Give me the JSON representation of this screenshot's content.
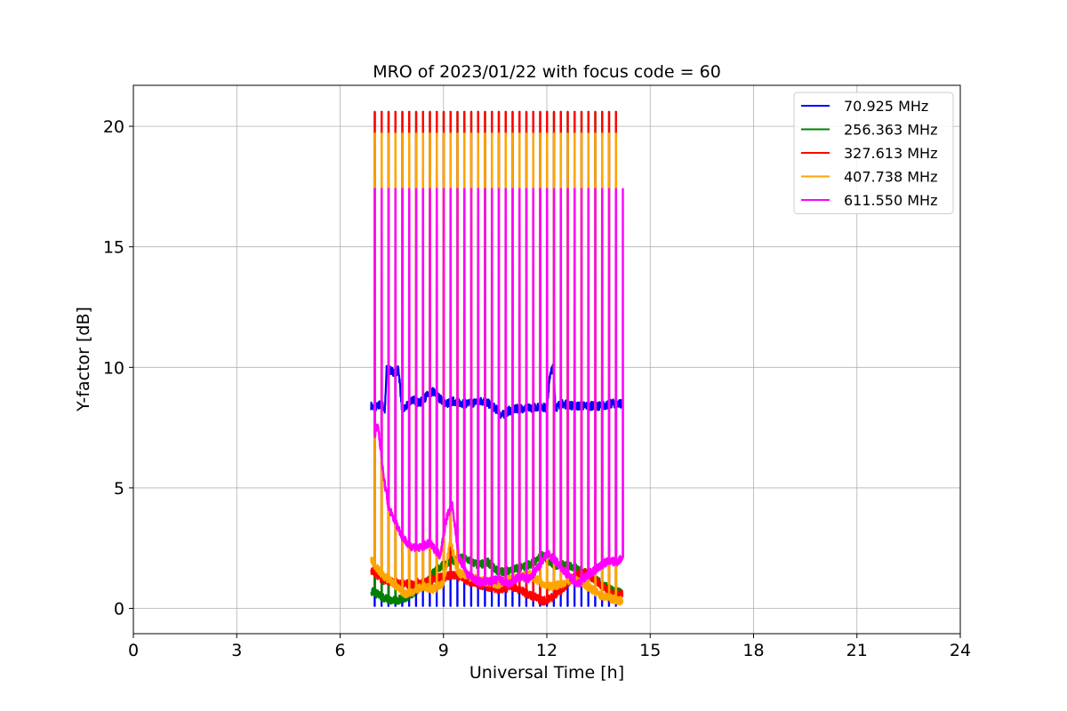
{
  "chart_data": {
    "type": "line",
    "title": "MRO of 2023/01/22 with focus code = 60",
    "xlabel": "Universal Time [h]",
    "ylabel": "Y-factor [dB]",
    "xlim": [
      0,
      24
    ],
    "ylim": [
      -1.05,
      21.7
    ],
    "xticks": [
      0,
      3,
      6,
      9,
      12,
      15,
      18,
      21,
      24
    ],
    "yticks": [
      0,
      5,
      10,
      15,
      20
    ],
    "grid": true,
    "legend_position": "top-right",
    "cycle_start_hour": 7.0,
    "cycle_end_hour": 14.2,
    "cycle_period_hour": 0.2,
    "series": [
      {
        "name": " 70.925 MHz",
        "color": "#0000ff",
        "baseline_points": [
          [
            6.9,
            8.4
          ],
          [
            7.0,
            8.3
          ],
          [
            7.2,
            8.5
          ],
          [
            7.3,
            8.2
          ],
          [
            7.35,
            9.9
          ],
          [
            7.6,
            9.8
          ],
          [
            7.7,
            9.9
          ],
          [
            7.8,
            8.2
          ],
          [
            7.95,
            8.4
          ],
          [
            8.1,
            8.7
          ],
          [
            8.3,
            8.5
          ],
          [
            8.5,
            8.8
          ],
          [
            8.7,
            9.0
          ],
          [
            8.9,
            8.7
          ],
          [
            9.1,
            8.5
          ],
          [
            9.3,
            8.6
          ],
          [
            9.6,
            8.5
          ],
          [
            9.8,
            8.5
          ],
          [
            10.0,
            8.6
          ],
          [
            10.2,
            8.6
          ],
          [
            10.5,
            8.3
          ],
          [
            10.7,
            8.0
          ],
          [
            10.9,
            8.2
          ],
          [
            11.2,
            8.3
          ],
          [
            11.5,
            8.3
          ],
          [
            11.8,
            8.4
          ],
          [
            12.0,
            8.3
          ],
          [
            12.1,
            9.8
          ],
          [
            12.2,
            10.0
          ],
          [
            12.25,
            8.3
          ],
          [
            12.4,
            8.5
          ],
          [
            12.8,
            8.4
          ],
          [
            13.2,
            8.4
          ],
          [
            13.6,
            8.4
          ],
          [
            13.9,
            8.5
          ],
          [
            14.2,
            8.5
          ]
        ],
        "dip_value": 0.1
      },
      {
        "name": "256.363 MHz",
        "color": "#008000",
        "baseline_points": [
          [
            6.9,
            0.7
          ],
          [
            7.2,
            0.5
          ],
          [
            7.5,
            0.3
          ],
          [
            7.8,
            0.4
          ],
          [
            8.1,
            0.6
          ],
          [
            8.4,
            1.0
          ],
          [
            8.7,
            1.5
          ],
          [
            9.0,
            1.8
          ],
          [
            9.3,
            2.0
          ],
          [
            9.6,
            2.1
          ],
          [
            10.0,
            1.8
          ],
          [
            10.3,
            1.9
          ],
          [
            10.6,
            1.5
          ],
          [
            11.0,
            1.6
          ],
          [
            11.3,
            1.7
          ],
          [
            11.6,
            1.9
          ],
          [
            11.9,
            2.2
          ],
          [
            12.2,
            1.8
          ],
          [
            12.5,
            1.8
          ],
          [
            12.8,
            1.7
          ],
          [
            13.1,
            1.5
          ],
          [
            13.4,
            1.2
          ],
          [
            13.7,
            0.9
          ],
          [
            14.0,
            0.7
          ],
          [
            14.2,
            0.6
          ]
        ],
        "peak_value": 20.6
      },
      {
        "name": "327.613 MHz",
        "color": "#ff0000",
        "baseline_points": [
          [
            6.9,
            1.6
          ],
          [
            7.2,
            1.2
          ],
          [
            7.5,
            1.1
          ],
          [
            7.8,
            1.0
          ],
          [
            8.1,
            1.0
          ],
          [
            8.4,
            1.1
          ],
          [
            8.7,
            1.2
          ],
          [
            9.0,
            1.3
          ],
          [
            9.3,
            1.4
          ],
          [
            9.6,
            1.2
          ],
          [
            10.0,
            1.0
          ],
          [
            10.3,
            0.9
          ],
          [
            10.6,
            0.8
          ],
          [
            11.0,
            0.9
          ],
          [
            11.3,
            0.7
          ],
          [
            11.6,
            0.5
          ],
          [
            11.9,
            0.3
          ],
          [
            12.2,
            0.5
          ],
          [
            12.5,
            0.9
          ],
          [
            12.8,
            1.3
          ],
          [
            13.1,
            1.5
          ],
          [
            13.4,
            1.2
          ],
          [
            13.7,
            0.8
          ],
          [
            14.0,
            0.5
          ],
          [
            14.2,
            0.6
          ]
        ],
        "peak_value": 20.6
      },
      {
        "name": "407.738 MHz",
        "color": "#ffa500",
        "baseline_points": [
          [
            6.9,
            2.0
          ],
          [
            7.1,
            1.6
          ],
          [
            7.3,
            1.3
          ],
          [
            7.5,
            1.1
          ],
          [
            7.7,
            0.8
          ],
          [
            7.9,
            0.6
          ],
          [
            8.1,
            0.7
          ],
          [
            8.4,
            0.9
          ],
          [
            8.7,
            0.8
          ],
          [
            9.0,
            1.0
          ],
          [
            9.2,
            2.9
          ],
          [
            9.4,
            1.5
          ],
          [
            9.7,
            1.3
          ],
          [
            10.0,
            1.2
          ],
          [
            10.3,
            1.1
          ],
          [
            10.6,
            1.0
          ],
          [
            10.9,
            1.2
          ],
          [
            11.2,
            1.3
          ],
          [
            11.5,
            1.4
          ],
          [
            11.8,
            1.1
          ],
          [
            12.1,
            0.9
          ],
          [
            12.4,
            1.0
          ],
          [
            12.7,
            1.2
          ],
          [
            13.0,
            1.1
          ],
          [
            13.3,
            0.8
          ],
          [
            13.6,
            0.5
          ],
          [
            13.9,
            0.4
          ],
          [
            14.2,
            0.3
          ]
        ],
        "peak_value": 19.7
      },
      {
        "name": "611.550 MHz",
        "color": "#ff00ff",
        "baseline_points": [
          [
            7.0,
            7.2
          ],
          [
            7.1,
            7.6
          ],
          [
            7.25,
            5.6
          ],
          [
            7.4,
            4.2
          ],
          [
            7.6,
            3.6
          ],
          [
            7.8,
            3.0
          ],
          [
            8.0,
            2.6
          ],
          [
            8.3,
            2.5
          ],
          [
            8.6,
            2.7
          ],
          [
            8.9,
            2.2
          ],
          [
            9.1,
            3.8
          ],
          [
            9.25,
            4.3
          ],
          [
            9.45,
            2.1
          ],
          [
            9.7,
            1.4
          ],
          [
            10.0,
            1.1
          ],
          [
            10.3,
            1.1
          ],
          [
            10.6,
            1.2
          ],
          [
            10.9,
            1.0
          ],
          [
            11.2,
            1.3
          ],
          [
            11.5,
            1.2
          ],
          [
            11.8,
            1.8
          ],
          [
            12.0,
            2.3
          ],
          [
            12.3,
            1.9
          ],
          [
            12.6,
            1.4
          ],
          [
            12.9,
            1.0
          ],
          [
            13.2,
            1.4
          ],
          [
            13.5,
            1.7
          ],
          [
            13.8,
            2.0
          ],
          [
            14.0,
            1.9
          ],
          [
            14.2,
            2.1
          ]
        ],
        "peak_value": 17.4
      }
    ]
  }
}
